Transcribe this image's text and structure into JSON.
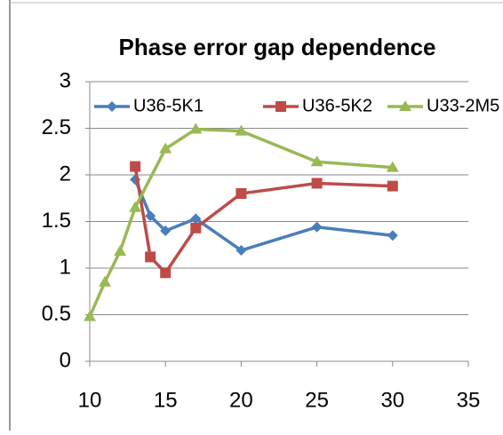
{
  "chart_data": {
    "type": "line",
    "title": "Phase error gap dependence",
    "series": [
      {
        "name": "U36-5K1",
        "color": "#4a7ebb",
        "marker": "diamond",
        "x": [
          13,
          14,
          15,
          17,
          20,
          25,
          30
        ],
        "values": [
          1.95,
          1.56,
          1.4,
          1.53,
          1.19,
          1.44,
          1.35
        ]
      },
      {
        "name": "U36-5K2",
        "color": "#be4b48",
        "marker": "square",
        "x": [
          13,
          14,
          15,
          17,
          20,
          25,
          30
        ],
        "values": [
          2.09,
          1.12,
          0.95,
          1.43,
          1.8,
          1.91,
          1.88
        ]
      },
      {
        "name": "U33-2M5",
        "color": "#98b954",
        "marker": "triangle",
        "x": [
          10,
          11,
          12,
          13,
          15,
          17,
          20,
          25,
          30
        ],
        "values": [
          0.48,
          0.85,
          1.18,
          1.65,
          2.28,
          2.49,
          2.47,
          2.14,
          2.08
        ]
      }
    ],
    "xlim": [
      10,
      35
    ],
    "xticks": [
      10,
      15,
      20,
      25,
      30,
      35
    ],
    "ylim": [
      0,
      3
    ],
    "yticks": [
      0,
      0.5,
      1,
      1.5,
      2,
      2.5,
      3
    ],
    "grid": true,
    "legend": "top"
  }
}
